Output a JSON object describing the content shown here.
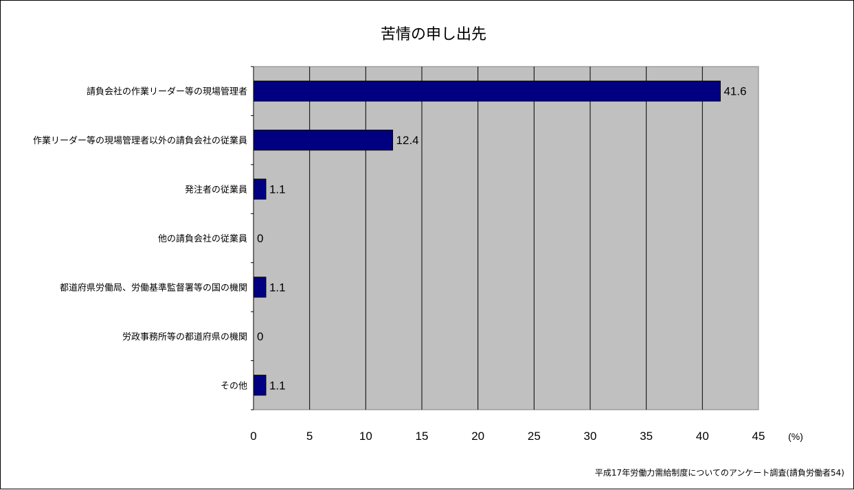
{
  "chart_data": {
    "type": "bar",
    "orientation": "horizontal",
    "title": "苦情の申し出先",
    "categories": [
      "請負会社の作業リーダー等の現場管理者",
      "作業リーダー等の現場管理者以外の請負会社の従業員",
      "発注者の従業員",
      "他の請負会社の従業員",
      "都道府県労働局、労働基準監督署等の国の機関",
      "労政事務所等の都道府県の機関",
      "その他"
    ],
    "values": [
      41.6,
      12.4,
      1.1,
      0,
      1.1,
      0,
      1.1
    ],
    "value_labels": [
      "41.6",
      "12.4",
      "1.1",
      "0",
      "1.1",
      "0",
      "1.1"
    ],
    "xlim": [
      0,
      45
    ],
    "x_ticks": [
      "0",
      "5",
      "10",
      "15",
      "20",
      "25",
      "30",
      "35",
      "40",
      "45"
    ],
    "x_unit": "(%)",
    "grid": "vertical",
    "colors": {
      "bar": "#000080",
      "plot_background": "#c0c0c0",
      "gridline": "#000000"
    }
  },
  "source_note": "平成17年労働力需給制度についてのアンケート調査(請負労働者54)"
}
